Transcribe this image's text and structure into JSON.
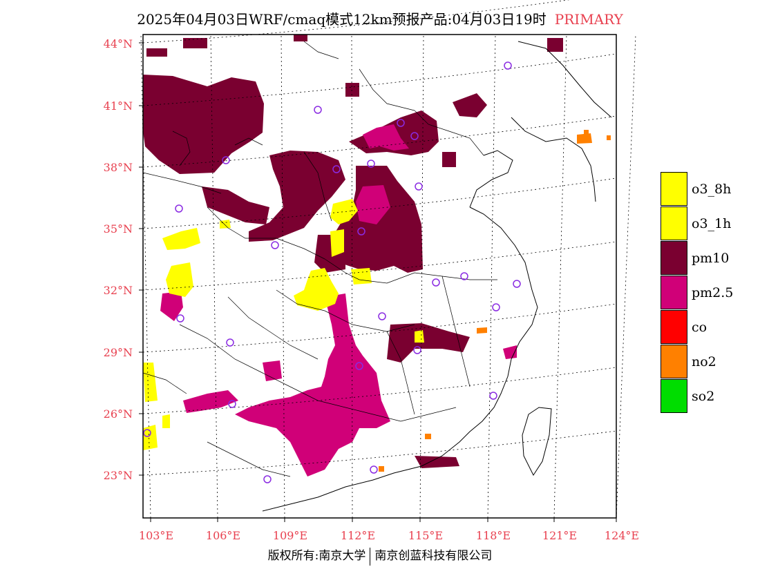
{
  "title": {
    "text": "2025年04月03日WRF/cmaq模式12km预报产品:04月03日19时",
    "tag": "PRIMARY"
  },
  "map": {
    "lat_labels": [
      "44°N",
      "41°N",
      "38°N",
      "35°N",
      "32°N",
      "29°N",
      "26°N",
      "23°N"
    ],
    "lon_labels": [
      "103°E",
      "106°E",
      "109°E",
      "112°E",
      "115°E",
      "118°E",
      "121°E",
      "124°E"
    ]
  },
  "legend": {
    "items": [
      {
        "label": "o3_8h",
        "color": "#ffff00"
      },
      {
        "label": "o3_1h",
        "color": "#ffff00"
      },
      {
        "label": "pm10",
        "color": "#7a0030"
      },
      {
        "label": "pm2.5",
        "color": "#d00078"
      },
      {
        "label": "co",
        "color": "#ff0000"
      },
      {
        "label": "no2",
        "color": "#ff8000"
      },
      {
        "label": "so2",
        "color": "#00dd00"
      }
    ]
  },
  "footer": {
    "left": "版权所有:南京大学",
    "right": "南京创蓝科技有限公司"
  }
}
